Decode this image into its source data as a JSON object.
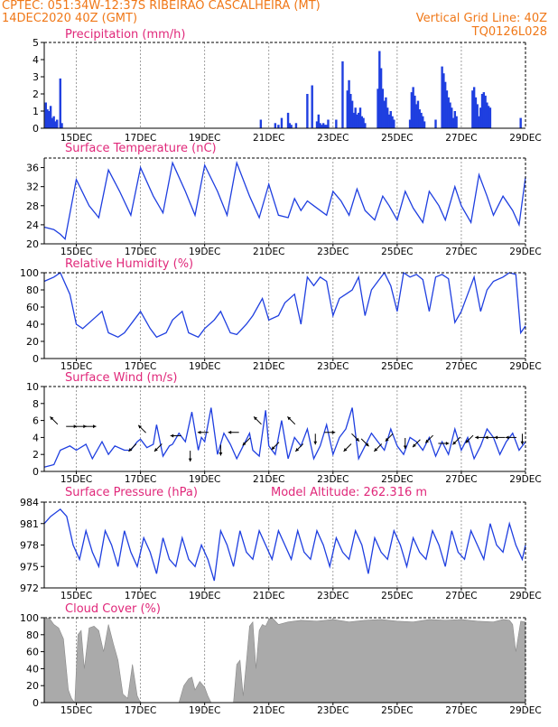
{
  "header": {
    "line1_left": "CPTEC:   051:34W-12:37S   RIBEIRAO CASCALHEIRA (MT)",
    "line2_left": "14DEC2020 40Z (GMT)",
    "line1_right": "Vertical Grid Line: 40Z",
    "line2_right": "TQ0126L028"
  },
  "colors": {
    "header": "#f07818",
    "title": "#e0287a",
    "series": "#1f3fe0",
    "bars": "#1f3fe0",
    "cloud": "#aaaaaa",
    "arrows": "#000000"
  },
  "x_ticks": [
    "15DEC",
    "17DEC",
    "19DEC",
    "21DEC",
    "23DEC",
    "25DEC",
    "27DEC",
    "29DEC"
  ],
  "chart_data": [
    {
      "id": "precip",
      "type": "bar",
      "title": "Precipitation (mm/h)",
      "ylim": [
        0,
        5
      ],
      "yticks": [
        0,
        1,
        2,
        3,
        4,
        5
      ],
      "xlabel": "",
      "ylabel": "",
      "x": [
        0.05,
        0.1,
        0.15,
        0.2,
        0.25,
        0.3,
        0.35,
        0.4,
        0.5,
        0.55,
        6.75,
        7.2,
        7.3,
        7.4,
        7.6,
        7.65,
        7.7,
        7.85,
        8.2,
        8.35,
        8.5,
        8.55,
        8.6,
        8.65,
        8.7,
        8.75,
        8.8,
        8.85,
        9.1,
        9.3,
        9.45,
        9.5,
        9.55,
        9.6,
        9.65,
        9.7,
        9.75,
        9.8,
        9.85,
        9.9,
        9.95,
        10.0,
        10.4,
        10.45,
        10.5,
        10.55,
        10.6,
        10.65,
        10.7,
        10.75,
        10.8,
        10.85,
        10.9,
        11.4,
        11.45,
        11.5,
        11.55,
        11.6,
        11.65,
        11.7,
        11.75,
        11.8,
        11.85,
        12.2,
        12.4,
        12.45,
        12.5,
        12.55,
        12.6,
        12.65,
        12.7,
        12.75,
        12.8,
        12.85,
        13.35,
        13.4,
        13.45,
        13.5,
        13.55,
        13.6,
        13.65,
        13.7,
        13.75,
        13.8,
        13.85,
        13.9,
        14.85
      ],
      "values": [
        1.5,
        1.1,
        1.0,
        1.3,
        0.6,
        0.7,
        0.4,
        0.5,
        2.9,
        0.3,
        0.5,
        0.3,
        0.2,
        0.6,
        0.9,
        0.3,
        0.2,
        0.3,
        2.0,
        2.5,
        0.4,
        0.8,
        0.3,
        0.2,
        0.3,
        0.2,
        0.2,
        0.5,
        0.5,
        3.9,
        2.2,
        2.8,
        2.0,
        1.6,
        0.9,
        1.2,
        0.8,
        0.9,
        1.2,
        0.7,
        0.6,
        0.3,
        2.3,
        4.5,
        3.5,
        2.3,
        1.6,
        1.8,
        1.2,
        0.8,
        1.0,
        0.7,
        0.5,
        0.5,
        2.1,
        2.4,
        1.9,
        1.4,
        1.6,
        1.1,
        0.9,
        0.7,
        0.4,
        0.5,
        3.6,
        3.2,
        2.7,
        2.2,
        1.8,
        1.5,
        1.2,
        0.6,
        1.0,
        0.7,
        2.2,
        2.4,
        1.8,
        1.4,
        0.7,
        1.2,
        2.0,
        2.1,
        1.9,
        1.5,
        1.3,
        1.2,
        0.6
      ]
    },
    {
      "id": "temp",
      "type": "line",
      "title": "Surface Temperature (nC)",
      "ylim": [
        20,
        38
      ],
      "yticks": [
        20,
        24,
        28,
        32,
        36
      ],
      "xlabel": "",
      "ylabel": "",
      "x": [
        0,
        0.3,
        0.5,
        0.65,
        1.0,
        1.4,
        1.7,
        2.0,
        2.35,
        2.7,
        3.0,
        3.4,
        3.7,
        4.0,
        4.4,
        4.7,
        5.0,
        5.4,
        5.7,
        6.0,
        6.4,
        6.7,
        7.0,
        7.3,
        7.6,
        7.8,
        8.0,
        8.2,
        8.4,
        8.8,
        9.0,
        9.25,
        9.5,
        9.75,
        10.0,
        10.3,
        10.55,
        10.75,
        11.0,
        11.25,
        11.5,
        11.8,
        12.0,
        12.3,
        12.5,
        12.8,
        13.0,
        13.3,
        13.55,
        13.8,
        14.0,
        14.3,
        14.6,
        14.8,
        15.0
      ],
      "values": [
        23.5,
        23,
        22,
        21,
        33.5,
        28,
        25.5,
        35.5,
        31,
        26,
        36,
        30,
        26.5,
        37,
        31,
        26,
        36.5,
        31,
        26,
        37,
        30,
        25.5,
        32.5,
        26,
        25.5,
        29.5,
        27,
        29,
        28,
        26,
        31,
        29,
        26,
        31.5,
        27,
        25,
        30,
        28,
        25,
        31,
        27.5,
        24.5,
        31,
        28,
        25,
        32,
        28,
        24.5,
        34.5,
        30,
        26,
        30,
        27,
        24,
        34
      ]
    },
    {
      "id": "rh",
      "type": "line",
      "title": "Relative Humidity (%)",
      "ylim": [
        0,
        100
      ],
      "yticks": [
        0,
        20,
        40,
        60,
        80,
        100
      ],
      "xlabel": "",
      "ylabel": "",
      "x": [
        0,
        0.3,
        0.5,
        0.8,
        1.0,
        1.2,
        1.5,
        1.8,
        2.0,
        2.3,
        2.5,
        2.8,
        3.0,
        3.3,
        3.5,
        3.8,
        4.0,
        4.3,
        4.5,
        4.8,
        5.0,
        5.3,
        5.5,
        5.8,
        6.0,
        6.3,
        6.5,
        6.8,
        7.0,
        7.3,
        7.5,
        7.8,
        8.0,
        8.2,
        8.4,
        8.6,
        8.8,
        9.0,
        9.2,
        9.4,
        9.6,
        9.8,
        10.0,
        10.2,
        10.4,
        10.6,
        10.8,
        11.0,
        11.2,
        11.4,
        11.6,
        11.8,
        12.0,
        12.2,
        12.4,
        12.6,
        12.8,
        13.0,
        13.2,
        13.4,
        13.6,
        13.8,
        14.0,
        14.3,
        14.5,
        14.7,
        14.85,
        15.0
      ],
      "values": [
        90,
        95,
        100,
        75,
        40,
        35,
        45,
        55,
        30,
        25,
        30,
        45,
        55,
        35,
        25,
        30,
        45,
        55,
        30,
        25,
        35,
        45,
        55,
        30,
        28,
        40,
        50,
        70,
        45,
        50,
        65,
        75,
        40,
        95,
        85,
        95,
        90,
        50,
        70,
        75,
        80,
        95,
        50,
        80,
        90,
        100,
        85,
        55,
        100,
        95,
        98,
        92,
        55,
        95,
        98,
        93,
        42,
        55,
        75,
        95,
        55,
        80,
        90,
        95,
        100,
        98,
        30,
        38
      ]
    },
    {
      "id": "wind",
      "type": "line",
      "title": "Surface Wind (m/s)",
      "ylim": [
        0,
        10
      ],
      "yticks": [
        0,
        2,
        4,
        6,
        8,
        10
      ],
      "xlabel": "",
      "ylabel": "",
      "x": [
        0,
        0.3,
        0.5,
        0.8,
        1.0,
        1.3,
        1.5,
        1.8,
        2.0,
        2.2,
        2.5,
        2.7,
        2.9,
        3.0,
        3.2,
        3.4,
        3.5,
        3.7,
        3.9,
        4.0,
        4.2,
        4.4,
        4.6,
        4.8,
        4.9,
        5.0,
        5.2,
        5.4,
        5.6,
        5.8,
        6.0,
        6.2,
        6.4,
        6.5,
        6.7,
        6.9,
        7.0,
        7.2,
        7.4,
        7.6,
        7.8,
        8.0,
        8.2,
        8.4,
        8.6,
        8.8,
        9.0,
        9.2,
        9.4,
        9.6,
        9.8,
        10.0,
        10.2,
        10.4,
        10.6,
        10.8,
        11.0,
        11.2,
        11.4,
        11.6,
        11.8,
        12.0,
        12.2,
        12.4,
        12.6,
        12.8,
        13.0,
        13.2,
        13.4,
        13.6,
        13.8,
        14.0,
        14.2,
        14.4,
        14.6,
        14.8,
        15.0
      ],
      "values": [
        0.5,
        0.8,
        2.5,
        3,
        2.5,
        3.2,
        1.5,
        3.5,
        2,
        3,
        2.5,
        2.5,
        3.5,
        3.8,
        2.8,
        3.2,
        5.5,
        1.8,
        3,
        3.2,
        4.5,
        3.5,
        7,
        2.5,
        4,
        3.5,
        7.5,
        2,
        4.5,
        3.2,
        1.5,
        3,
        4.5,
        2.5,
        1.8,
        7.2,
        3,
        2,
        6,
        1.5,
        4,
        3,
        5,
        1.5,
        3,
        5.5,
        2,
        4,
        5,
        7.5,
        1.5,
        3,
        4.5,
        3.5,
        2.5,
        5,
        3,
        2,
        4,
        3.5,
        2.5,
        4,
        1.8,
        3.5,
        2,
        5,
        2.5,
        4,
        1.5,
        3,
        5,
        4,
        2,
        3.5,
        4.5,
        2.5,
        3.5
      ]
    },
    {
      "id": "pressure",
      "type": "line",
      "title": "Surface Pressure (hPa)",
      "annotation": "Model Altitude: 262.316 m",
      "ylim": [
        972,
        984
      ],
      "yticks": [
        972,
        975,
        978,
        981,
        984
      ],
      "xlabel": "",
      "ylabel": "",
      "x": [
        0,
        0.2,
        0.35,
        0.5,
        0.7,
        0.9,
        1.1,
        1.3,
        1.5,
        1.7,
        1.9,
        2.1,
        2.3,
        2.5,
        2.7,
        2.9,
        3.1,
        3.3,
        3.5,
        3.7,
        3.9,
        4.1,
        4.3,
        4.5,
        4.7,
        4.9,
        5.1,
        5.3,
        5.5,
        5.7,
        5.9,
        6.1,
        6.3,
        6.5,
        6.7,
        6.9,
        7.1,
        7.3,
        7.5,
        7.7,
        7.9,
        8.1,
        8.3,
        8.5,
        8.7,
        8.9,
        9.1,
        9.3,
        9.5,
        9.7,
        9.9,
        10.1,
        10.3,
        10.5,
        10.7,
        10.9,
        11.1,
        11.3,
        11.5,
        11.7,
        11.9,
        12.1,
        12.3,
        12.5,
        12.7,
        12.9,
        13.1,
        13.3,
        13.5,
        13.7,
        13.9,
        14.1,
        14.3,
        14.5,
        14.7,
        14.9,
        15.0
      ],
      "values": [
        981,
        982,
        982.5,
        983,
        982,
        978,
        976,
        980,
        977,
        975,
        980,
        978,
        975,
        980,
        977,
        975,
        979,
        977,
        974,
        979,
        976,
        975,
        979,
        976,
        975,
        978,
        976,
        973,
        980,
        978,
        975,
        980,
        977,
        976,
        980,
        978,
        976,
        980,
        978,
        976,
        980,
        977,
        976,
        980,
        978,
        975,
        979,
        977,
        976,
        980,
        978,
        974,
        979,
        977,
        976,
        980,
        978,
        975,
        979,
        977,
        976,
        980,
        978,
        975,
        980,
        977,
        976,
        980,
        978,
        976,
        981,
        978,
        977,
        981,
        978,
        976,
        978
      ]
    },
    {
      "id": "cloud",
      "type": "area",
      "title": "Cloud Cover (%)",
      "ylim": [
        0,
        100
      ],
      "yticks": [
        0,
        20,
        40,
        60,
        80,
        100
      ],
      "xlabel": "",
      "ylabel": "",
      "x": [
        0,
        0.15,
        0.3,
        0.45,
        0.6,
        0.75,
        0.85,
        0.95,
        1.05,
        1.15,
        1.25,
        1.4,
        1.55,
        1.7,
        1.85,
        2.0,
        2.15,
        2.3,
        2.45,
        2.6,
        2.75,
        2.9,
        3.0,
        3.05,
        3.15,
        3.25,
        3.4,
        3.6,
        3.8,
        4.0,
        4.1,
        4.2,
        4.35,
        4.5,
        4.6,
        4.7,
        4.85,
        5.0,
        5.1,
        5.2,
        5.4,
        5.5,
        5.6,
        5.7,
        5.8,
        5.9,
        6.0,
        6.1,
        6.2,
        6.3,
        6.4,
        6.5,
        6.6,
        6.7,
        6.8,
        6.9,
        7.0,
        7.1,
        7.3,
        7.6,
        8.0,
        8.5,
        9.0,
        9.5,
        10.0,
        10.5,
        11.0,
        11.5,
        12.0,
        12.5,
        13.0,
        13.5,
        14.0,
        14.3,
        14.5,
        14.6,
        14.7,
        14.85,
        15.0
      ],
      "values": [
        98,
        100,
        92,
        88,
        75,
        15,
        5,
        0,
        80,
        85,
        40,
        88,
        90,
        85,
        60,
        92,
        70,
        50,
        10,
        5,
        45,
        8,
        0,
        0,
        0,
        0,
        0,
        0,
        0,
        0,
        0,
        0,
        20,
        28,
        30,
        15,
        25,
        18,
        8,
        0,
        0,
        0,
        0,
        0,
        0,
        0,
        45,
        50,
        8,
        48,
        90,
        95,
        40,
        85,
        92,
        90,
        98,
        100,
        92,
        95,
        97,
        96,
        98,
        95,
        97,
        98,
        96,
        95,
        98,
        97,
        98,
        96,
        95,
        98,
        97,
        92,
        60,
        96,
        95
      ]
    }
  ],
  "wind_arrows": [
    {
      "x": 0.3,
      "y": 6.0,
      "dir": "nw"
    },
    {
      "x": 0.85,
      "y": 5.3,
      "dir": "e"
    },
    {
      "x": 1.15,
      "y": 5.3,
      "dir": "e"
    },
    {
      "x": 1.45,
      "y": 5.3,
      "dir": "e"
    },
    {
      "x": 2.75,
      "y": 2.8,
      "dir": "sw"
    },
    {
      "x": 3.05,
      "y": 5.0,
      "dir": "nw"
    },
    {
      "x": 3.55,
      "y": 2.8,
      "dir": "sw"
    },
    {
      "x": 4.1,
      "y": 4.2,
      "dir": "w"
    },
    {
      "x": 4.55,
      "y": 1.8,
      "dir": "s"
    },
    {
      "x": 4.95,
      "y": 4.6,
      "dir": "w"
    },
    {
      "x": 5.5,
      "y": 2.5,
      "dir": "s"
    },
    {
      "x": 5.9,
      "y": 4.6,
      "dir": "w"
    },
    {
      "x": 6.3,
      "y": 3.5,
      "dir": "sw"
    },
    {
      "x": 6.65,
      "y": 6.0,
      "dir": "nw"
    },
    {
      "x": 7.2,
      "y": 3.0,
      "dir": "sw"
    },
    {
      "x": 7.7,
      "y": 6.0,
      "dir": "nw"
    },
    {
      "x": 7.95,
      "y": 2.8,
      "dir": "sw"
    },
    {
      "x": 8.45,
      "y": 3.8,
      "dir": "s"
    },
    {
      "x": 8.9,
      "y": 4.6,
      "dir": "e"
    },
    {
      "x": 9.45,
      "y": 2.8,
      "dir": "sw"
    },
    {
      "x": 9.7,
      "y": 4.0,
      "dir": "se"
    },
    {
      "x": 10.0,
      "y": 3.4,
      "dir": "se"
    },
    {
      "x": 10.4,
      "y": 2.8,
      "dir": "sw"
    },
    {
      "x": 10.75,
      "y": 4.0,
      "dir": "sw"
    },
    {
      "x": 11.25,
      "y": 3.3,
      "dir": "s"
    },
    {
      "x": 11.6,
      "y": 3.3,
      "dir": "sw"
    },
    {
      "x": 12.0,
      "y": 3.8,
      "dir": "sw"
    },
    {
      "x": 12.45,
      "y": 3.3,
      "dir": "e"
    },
    {
      "x": 12.85,
      "y": 3.6,
      "dir": "sw"
    },
    {
      "x": 13.25,
      "y": 3.8,
      "dir": "sw"
    },
    {
      "x": 13.6,
      "y": 4.0,
      "dir": "w"
    },
    {
      "x": 13.9,
      "y": 4.0,
      "dir": "w"
    },
    {
      "x": 14.2,
      "y": 4.0,
      "dir": "w"
    },
    {
      "x": 14.55,
      "y": 4.0,
      "dir": "w"
    },
    {
      "x": 14.9,
      "y": 3.8,
      "dir": "s"
    }
  ]
}
